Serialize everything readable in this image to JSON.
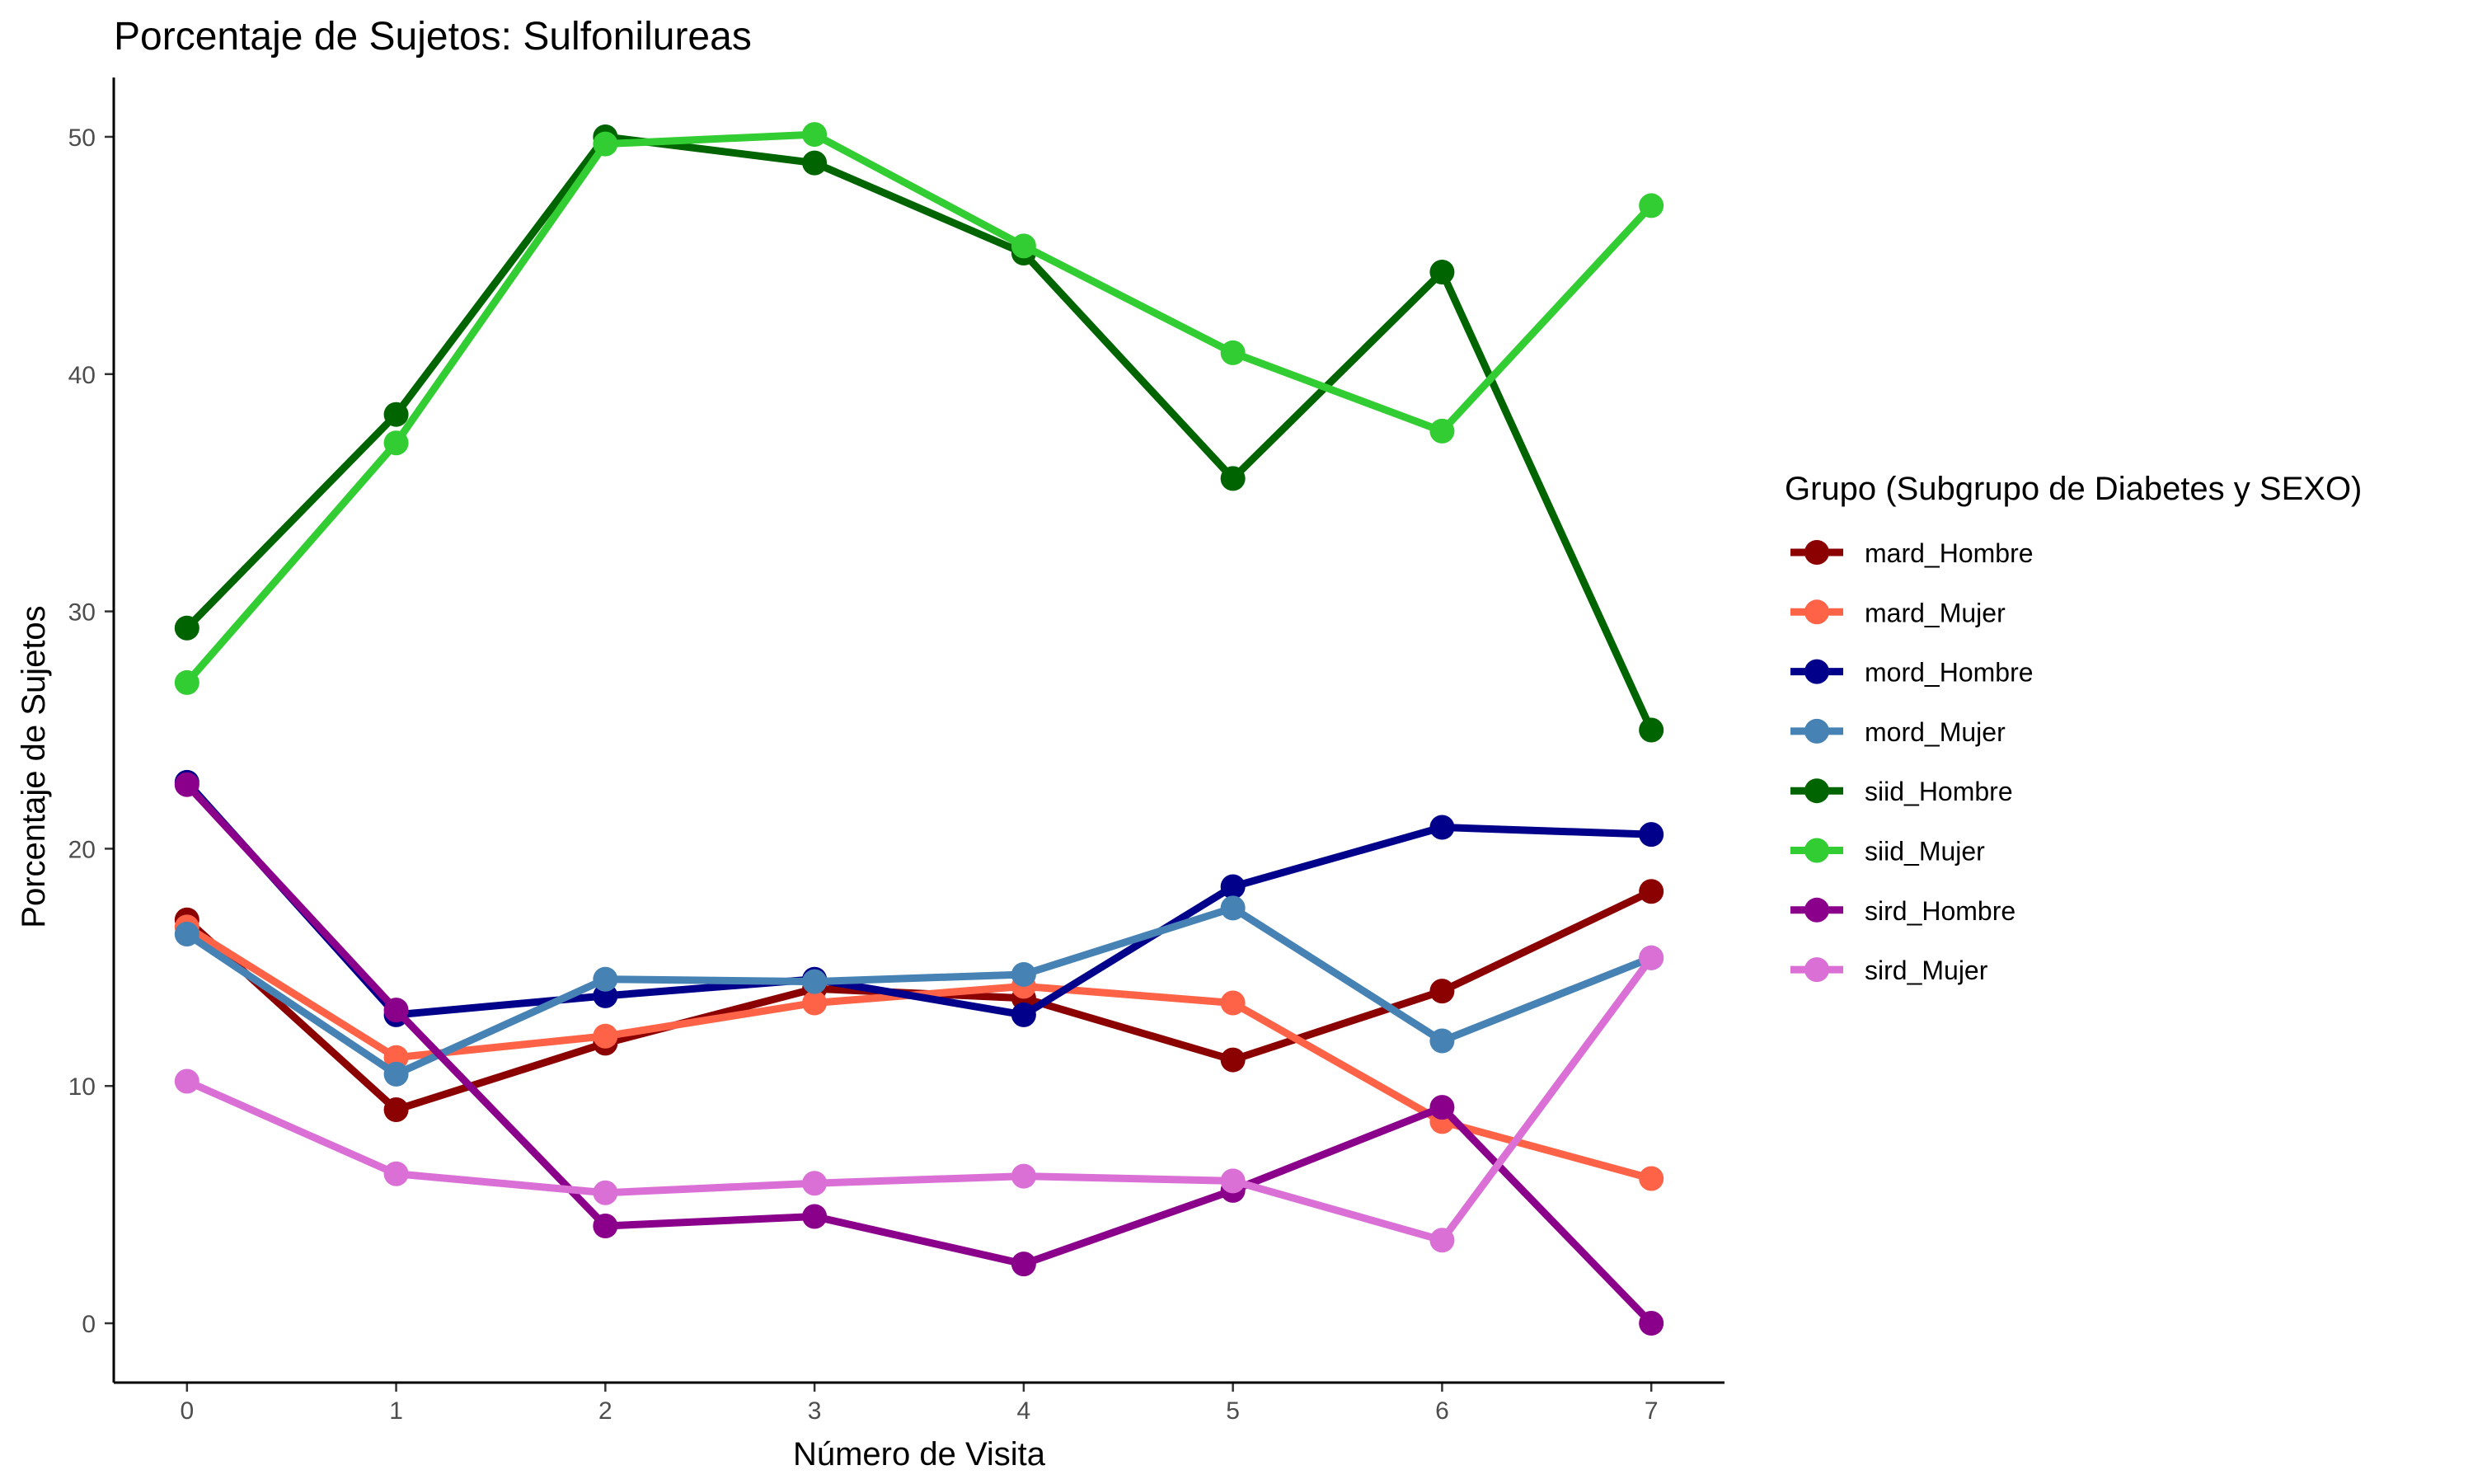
{
  "chart_data": {
    "type": "line",
    "title": "Porcentaje de Sujetos: Sulfonilureas",
    "xlabel": "Número de Visita",
    "ylabel": "Porcentaje de Sujetos",
    "x": [
      0,
      1,
      2,
      3,
      4,
      5,
      6,
      7
    ],
    "xlim": [
      -0.35,
      7.35
    ],
    "ylim": [
      -2.5,
      52.5
    ],
    "xticks": [
      "0",
      "1",
      "2",
      "3",
      "4",
      "5",
      "6",
      "7"
    ],
    "yticks": [
      0,
      10,
      20,
      30,
      40,
      50
    ],
    "grid": false,
    "legend": {
      "title": "Grupo (Subgrupo de Diabetes y SEXO)",
      "position": "right"
    },
    "series": [
      {
        "name": "mard_Hombre",
        "color": "#8B0000",
        "values": [
          17.0,
          9.0,
          11.8,
          14.1,
          13.7,
          11.1,
          14.0,
          18.2
        ]
      },
      {
        "name": "mard_Mujer",
        "color": "#FF6347",
        "values": [
          16.7,
          11.2,
          12.1,
          13.5,
          14.2,
          13.5,
          8.5,
          6.1
        ]
      },
      {
        "name": "mord_Hombre",
        "color": "#00008B",
        "values": [
          22.8,
          13.0,
          13.8,
          14.5,
          13.0,
          18.4,
          20.9,
          20.6
        ]
      },
      {
        "name": "mord_Mujer",
        "color": "#4682B4",
        "values": [
          16.4,
          10.5,
          14.5,
          14.4,
          14.7,
          17.5,
          11.9,
          15.4
        ]
      },
      {
        "name": "siid_Hombre",
        "color": "#006400",
        "values": [
          29.3,
          38.3,
          50.0,
          48.9,
          45.1,
          35.6,
          44.3,
          25.0
        ]
      },
      {
        "name": "siid_Mujer",
        "color": "#32CD32",
        "values": [
          27.0,
          37.1,
          49.7,
          50.1,
          45.4,
          40.9,
          37.6,
          47.1
        ]
      },
      {
        "name": "sird_Hombre",
        "color": "#8B008B",
        "values": [
          22.7,
          13.2,
          4.1,
          4.5,
          2.5,
          5.6,
          9.1,
          0.0
        ]
      },
      {
        "name": "sird_Mujer",
        "color": "#DA70D6",
        "values": [
          10.2,
          6.3,
          5.5,
          5.9,
          6.2,
          6.0,
          3.5,
          15.4
        ]
      }
    ]
  }
}
